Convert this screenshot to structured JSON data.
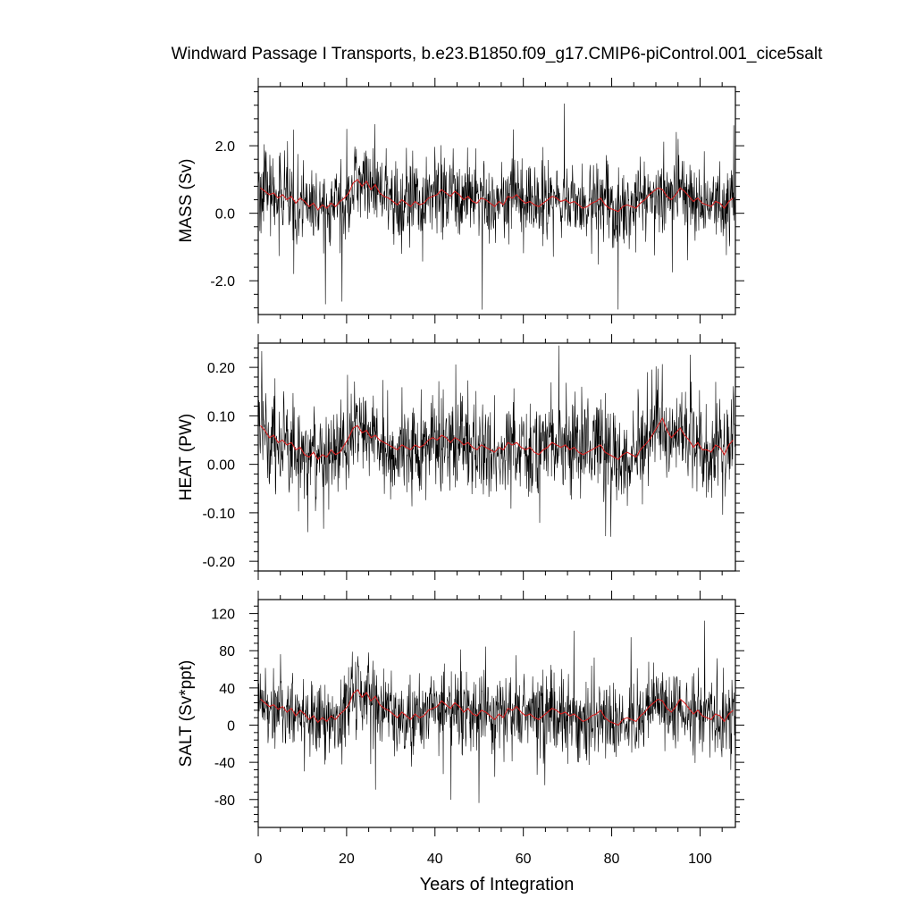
{
  "chart_data": {
    "type": "line",
    "title": "Windward Passage I Transports, b.e23.B1850.f09_g17.CMIP6-piControl.001_cice5salt",
    "xlabel": "Years of Integration",
    "xlim": [
      0,
      108
    ],
    "x_ticks": [
      0,
      20,
      40,
      60,
      80,
      100
    ],
    "grid": false,
    "legend": "none",
    "colors": {
      "monthly": "#000000",
      "annual_mean": "#d62020"
    },
    "panels": [
      {
        "ylabel": "MASS (Sv)",
        "ylim": [
          -3.0,
          3.75
        ],
        "y_ticks": [
          -2.0,
          0.0,
          2.0
        ],
        "y_tick_labels": [
          "-2.0",
          "0.0",
          "2.0"
        ],
        "monthly_mean": 0.35,
        "monthly_std": 0.75,
        "monthly_min": -3.0,
        "monthly_max": 3.7,
        "annual_mean_x": [
          0.5,
          1.5,
          2.5,
          3.5,
          4.5,
          5.5,
          6.5,
          7.5,
          8.5,
          9.5,
          10.5,
          11.5,
          12.5,
          13.5,
          14.5,
          15.5,
          16.5,
          17.5,
          18.5,
          19.5,
          20.5,
          21.5,
          22.5,
          23.5,
          24.5,
          25.5,
          26.5,
          27.5,
          28.5,
          29.5,
          30.5,
          31.5,
          32.5,
          33.5,
          34.5,
          35.5,
          36.5,
          37.5,
          38.5,
          39.5,
          40.5,
          41.5,
          42.5,
          43.5,
          44.5,
          45.5,
          46.5,
          47.5,
          48.5,
          49.5,
          50.5,
          51.5,
          52.5,
          53.5,
          54.5,
          55.5,
          56.5,
          57.5,
          58.5,
          59.5,
          60.5,
          61.5,
          62.5,
          63.5,
          64.5,
          65.5,
          66.5,
          67.5,
          68.5,
          69.5,
          70.5,
          71.5,
          72.5,
          73.5,
          74.5,
          75.5,
          76.5,
          77.5,
          78.5,
          79.5,
          80.5,
          81.5,
          82.5,
          83.5,
          84.5,
          85.5,
          86.5,
          87.5,
          88.5,
          89.5,
          90.5,
          91.5,
          92.5,
          93.5,
          94.5,
          95.5,
          96.5,
          97.5,
          98.5,
          99.5,
          100.5,
          101.5,
          102.5,
          103.5,
          104.5,
          105.5,
          106.5,
          107.5
        ],
        "annual_mean_y": [
          0.75,
          0.65,
          0.55,
          0.6,
          0.45,
          0.55,
          0.4,
          0.5,
          0.3,
          0.45,
          0.35,
          0.2,
          0.3,
          0.1,
          0.25,
          0.15,
          0.3,
          0.2,
          0.35,
          0.45,
          0.6,
          0.9,
          1.0,
          0.8,
          0.95,
          0.7,
          0.85,
          0.6,
          0.5,
          0.45,
          0.35,
          0.25,
          0.4,
          0.3,
          0.2,
          0.35,
          0.25,
          0.3,
          0.45,
          0.5,
          0.55,
          0.7,
          0.6,
          0.5,
          0.65,
          0.55,
          0.4,
          0.5,
          0.35,
          0.3,
          0.45,
          0.4,
          0.3,
          0.2,
          0.35,
          0.25,
          0.5,
          0.45,
          0.55,
          0.4,
          0.3,
          0.35,
          0.25,
          0.2,
          0.3,
          0.4,
          0.5,
          0.45,
          0.35,
          0.4,
          0.3,
          0.35,
          0.25,
          0.15,
          0.2,
          0.3,
          0.35,
          0.45,
          0.25,
          0.15,
          0.1,
          0.05,
          0.2,
          0.25,
          0.2,
          0.15,
          0.3,
          0.4,
          0.55,
          0.65,
          0.75,
          0.7,
          0.5,
          0.4,
          0.55,
          0.75,
          0.65,
          0.5,
          0.35,
          0.45,
          0.3,
          0.25,
          0.2,
          0.35,
          0.3,
          0.15,
          0.35,
          0.45
        ]
      },
      {
        "ylabel": "HEAT (PW)",
        "ylim": [
          -0.22,
          0.25
        ],
        "y_ticks": [
          -0.2,
          -0.1,
          0.0,
          0.1,
          0.2
        ],
        "y_tick_labels": [
          "-0.20",
          "-0.10",
          "0.00",
          "0.10",
          "0.20"
        ],
        "monthly_mean": 0.035,
        "monthly_std": 0.06,
        "monthly_min": -0.22,
        "monthly_max": 0.245,
        "annual_mean_x": [
          0.5,
          1.5,
          2.5,
          3.5,
          4.5,
          5.5,
          6.5,
          7.5,
          8.5,
          9.5,
          10.5,
          11.5,
          12.5,
          13.5,
          14.5,
          15.5,
          16.5,
          17.5,
          18.5,
          19.5,
          20.5,
          21.5,
          22.5,
          23.5,
          24.5,
          25.5,
          26.5,
          27.5,
          28.5,
          29.5,
          30.5,
          31.5,
          32.5,
          33.5,
          34.5,
          35.5,
          36.5,
          37.5,
          38.5,
          39.5,
          40.5,
          41.5,
          42.5,
          43.5,
          44.5,
          45.5,
          46.5,
          47.5,
          48.5,
          49.5,
          50.5,
          51.5,
          52.5,
          53.5,
          54.5,
          55.5,
          56.5,
          57.5,
          58.5,
          59.5,
          60.5,
          61.5,
          62.5,
          63.5,
          64.5,
          65.5,
          66.5,
          67.5,
          68.5,
          69.5,
          70.5,
          71.5,
          72.5,
          73.5,
          74.5,
          75.5,
          76.5,
          77.5,
          78.5,
          79.5,
          80.5,
          81.5,
          82.5,
          83.5,
          84.5,
          85.5,
          86.5,
          87.5,
          88.5,
          89.5,
          90.5,
          91.5,
          92.5,
          93.5,
          94.5,
          95.5,
          96.5,
          97.5,
          98.5,
          99.5,
          100.5,
          101.5,
          102.5,
          103.5,
          104.5,
          105.5,
          106.5,
          107.5
        ],
        "annual_mean_y": [
          0.08,
          0.07,
          0.055,
          0.06,
          0.045,
          0.05,
          0.04,
          0.045,
          0.03,
          0.035,
          0.02,
          0.015,
          0.025,
          0.01,
          0.02,
          0.015,
          0.03,
          0.02,
          0.025,
          0.04,
          0.055,
          0.075,
          0.08,
          0.065,
          0.07,
          0.055,
          0.06,
          0.05,
          0.045,
          0.04,
          0.035,
          0.03,
          0.04,
          0.035,
          0.03,
          0.04,
          0.035,
          0.04,
          0.05,
          0.055,
          0.05,
          0.06,
          0.055,
          0.045,
          0.055,
          0.05,
          0.04,
          0.045,
          0.035,
          0.03,
          0.04,
          0.035,
          0.03,
          0.025,
          0.035,
          0.03,
          0.045,
          0.04,
          0.045,
          0.035,
          0.03,
          0.035,
          0.025,
          0.02,
          0.03,
          0.035,
          0.045,
          0.04,
          0.035,
          0.04,
          0.03,
          0.035,
          0.025,
          0.02,
          0.025,
          0.03,
          0.035,
          0.04,
          0.025,
          0.02,
          0.015,
          0.01,
          0.02,
          0.025,
          0.02,
          0.015,
          0.03,
          0.04,
          0.05,
          0.065,
          0.08,
          0.095,
          0.07,
          0.055,
          0.065,
          0.075,
          0.06,
          0.05,
          0.035,
          0.045,
          0.03,
          0.03,
          0.025,
          0.04,
          0.035,
          0.02,
          0.04,
          0.05
        ]
      },
      {
        "ylabel": "SALT (Sv*ppt)",
        "ylim": [
          -110,
          135
        ],
        "y_ticks": [
          -80,
          -40,
          0,
          40,
          80,
          120
        ],
        "y_tick_labels": [
          "-80",
          "-40",
          "0",
          "40",
          "80",
          "120"
        ],
        "monthly_mean": 12,
        "monthly_std": 27,
        "monthly_min": -110,
        "monthly_max": 133,
        "annual_mean_x": [
          0.5,
          1.5,
          2.5,
          3.5,
          4.5,
          5.5,
          6.5,
          7.5,
          8.5,
          9.5,
          10.5,
          11.5,
          12.5,
          13.5,
          14.5,
          15.5,
          16.5,
          17.5,
          18.5,
          19.5,
          20.5,
          21.5,
          22.5,
          23.5,
          24.5,
          25.5,
          26.5,
          27.5,
          28.5,
          29.5,
          30.5,
          31.5,
          32.5,
          33.5,
          34.5,
          35.5,
          36.5,
          37.5,
          38.5,
          39.5,
          40.5,
          41.5,
          42.5,
          43.5,
          44.5,
          45.5,
          46.5,
          47.5,
          48.5,
          49.5,
          50.5,
          51.5,
          52.5,
          53.5,
          54.5,
          55.5,
          56.5,
          57.5,
          58.5,
          59.5,
          60.5,
          61.5,
          62.5,
          63.5,
          64.5,
          65.5,
          66.5,
          67.5,
          68.5,
          69.5,
          70.5,
          71.5,
          72.5,
          73.5,
          74.5,
          75.5,
          76.5,
          77.5,
          78.5,
          79.5,
          80.5,
          81.5,
          82.5,
          83.5,
          84.5,
          85.5,
          86.5,
          87.5,
          88.5,
          89.5,
          90.5,
          91.5,
          92.5,
          93.5,
          94.5,
          95.5,
          96.5,
          97.5,
          98.5,
          99.5,
          100.5,
          101.5,
          102.5,
          103.5,
          104.5,
          105.5,
          106.5,
          107.5
        ],
        "annual_mean_y": [
          28,
          24,
          20,
          22,
          17,
          20,
          14,
          18,
          10,
          16,
          12,
          6,
          10,
          3,
          8,
          4,
          10,
          6,
          12,
          16,
          22,
          34,
          38,
          30,
          35,
          26,
          31,
          22,
          18,
          16,
          12,
          8,
          14,
          10,
          6,
          12,
          8,
          10,
          16,
          18,
          20,
          26,
          22,
          18,
          24,
          20,
          14,
          18,
          12,
          10,
          16,
          14,
          10,
          6,
          12,
          8,
          18,
          16,
          20,
          14,
          10,
          12,
          8,
          6,
          10,
          14,
          18,
          16,
          12,
          14,
          10,
          12,
          8,
          4,
          6,
          10,
          12,
          16,
          8,
          4,
          2,
          0,
          6,
          8,
          6,
          4,
          10,
          14,
          20,
          24,
          28,
          26,
          18,
          14,
          20,
          28,
          24,
          18,
          12,
          16,
          10,
          8,
          6,
          12,
          10,
          4,
          12,
          16
        ]
      }
    ]
  }
}
